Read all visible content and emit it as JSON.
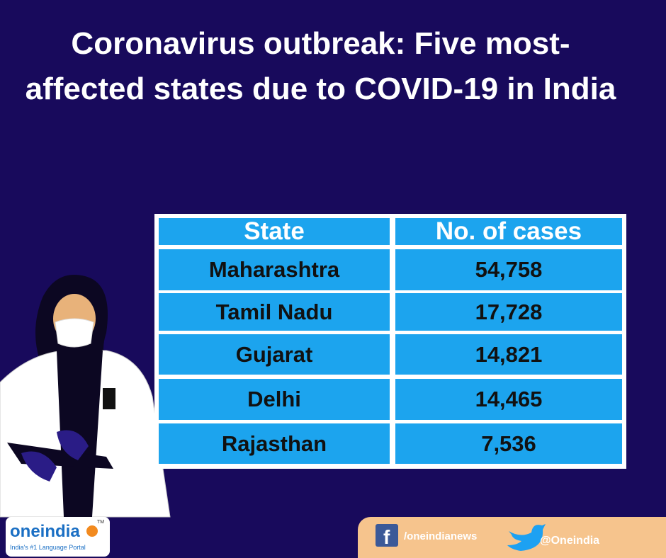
{
  "header": {
    "title": "Coronavirus outbreak: Five most-affected states due to COVID-19 in India"
  },
  "table": {
    "columns": [
      "State",
      "No. of cases"
    ],
    "rows": [
      [
        "Maharashtra",
        "54,758"
      ],
      [
        "Tamil Nadu",
        "17,728"
      ],
      [
        "Gujarat",
        "14,821"
      ],
      [
        "Delhi",
        "14,465"
      ],
      [
        "Rajasthan",
        "7,536"
      ]
    ]
  },
  "footer": {
    "logo": "oneindia",
    "trademark": "TM",
    "tagline": "India's #1 Language Portal",
    "facebook": "/oneindianews",
    "twitter": "@Oneindia"
  }
}
